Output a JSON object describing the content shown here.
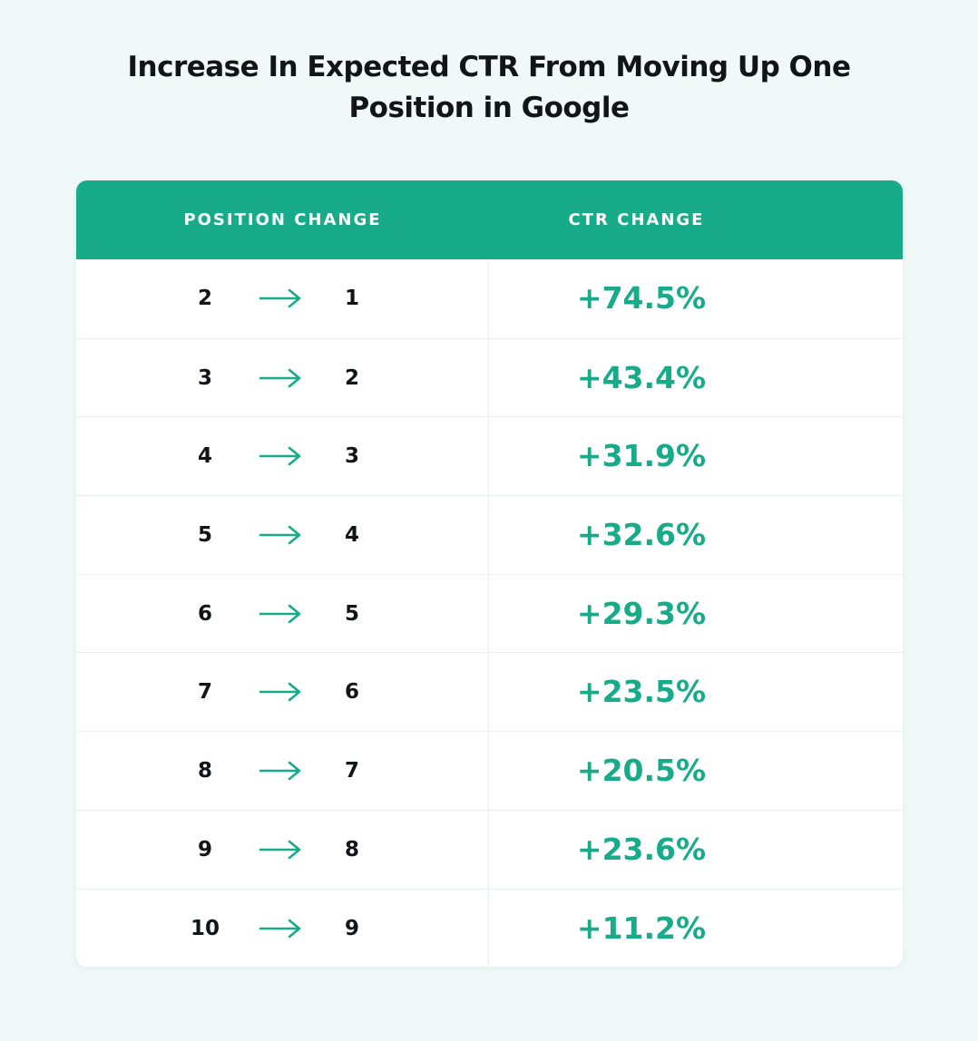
{
  "chart_data": {
    "type": "table",
    "title": "Increase In Expected CTR From Moving Up One Position in Google",
    "title_lines": [
      "Increase In Expected CTR From Moving Up One",
      "Position in Google"
    ],
    "columns": [
      "POSITION CHANGE",
      "CTR CHANGE"
    ],
    "rows": [
      {
        "from": "2",
        "to": "1",
        "ctr": "+74.5%"
      },
      {
        "from": "3",
        "to": "2",
        "ctr": "+43.4%"
      },
      {
        "from": "4",
        "to": "3",
        "ctr": "+31.9%"
      },
      {
        "from": "5",
        "to": "4",
        "ctr": "+32.6%"
      },
      {
        "from": "6",
        "to": "5",
        "ctr": "+29.3%"
      },
      {
        "from": "7",
        "to": "6",
        "ctr": "+23.5%"
      },
      {
        "from": "8",
        "to": "7",
        "ctr": "+20.5%"
      },
      {
        "from": "9",
        "to": "8",
        "ctr": "+23.6%"
      },
      {
        "from": "10",
        "to": "9",
        "ctr": "+11.2%"
      }
    ],
    "ctr_values": [
      74.5,
      43.4,
      31.9,
      32.6,
      29.3,
      23.5,
      20.5,
      23.6,
      11.2
    ]
  },
  "colors": {
    "accent": "#18ab89",
    "header_text": "#ffffff",
    "text": "#111418",
    "background": "#f1f9f8"
  },
  "icons": {
    "row_arrow": "right-arrow-icon"
  }
}
